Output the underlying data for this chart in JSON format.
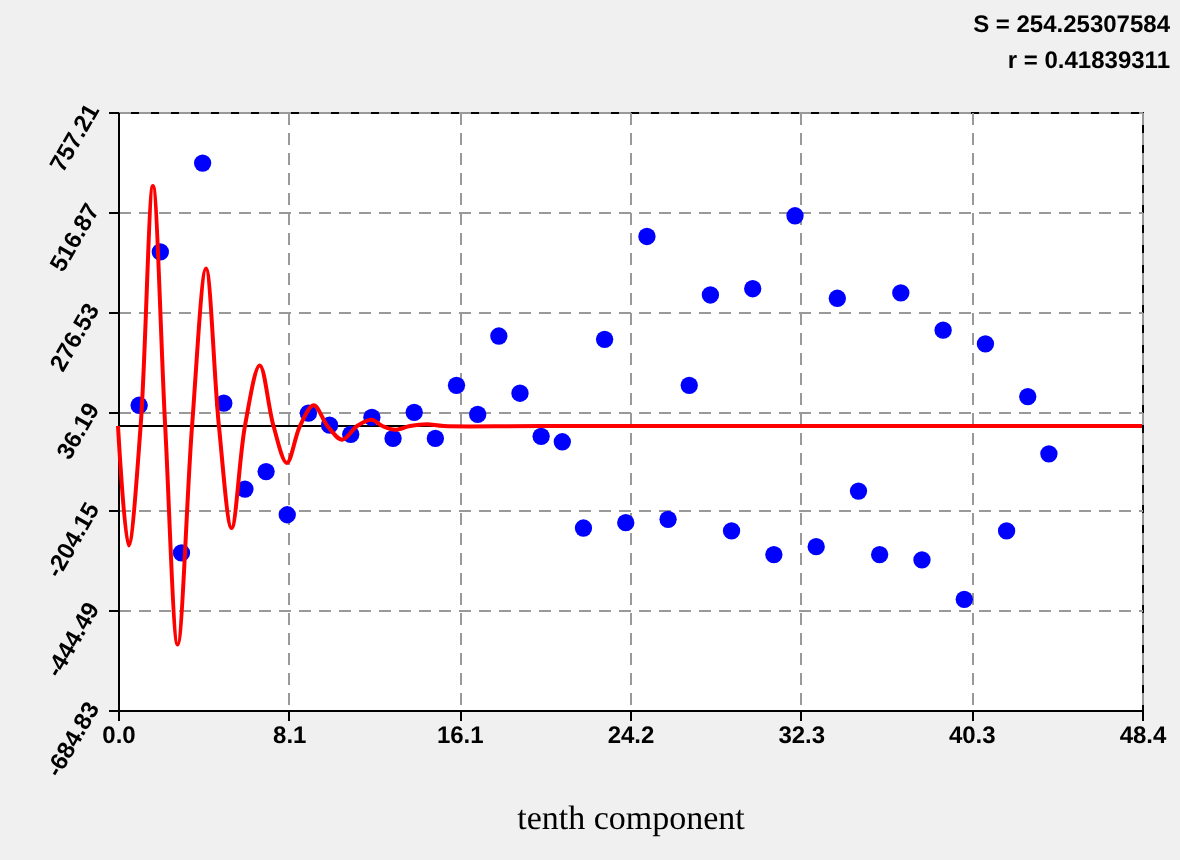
{
  "chart_data": {
    "type": "scatter",
    "xlabel": "tenth component",
    "annotations": [
      "S = 254.25307584",
      "r = 0.41839311"
    ],
    "xlim": [
      0,
      48.4
    ],
    "ylim": [
      -684.83,
      757.21
    ],
    "xticks": [
      {
        "value": 0,
        "label": "0.0"
      },
      {
        "value": 8.07,
        "label": "8.1"
      },
      {
        "value": 16.13,
        "label": "16.1"
      },
      {
        "value": 24.2,
        "label": "24.2"
      },
      {
        "value": 32.27,
        "label": "32.3"
      },
      {
        "value": 40.33,
        "label": "40.3"
      },
      48.4
    ],
    "yticks": [
      -684.83,
      -444.49,
      -204.15,
      36.19,
      276.53,
      516.87,
      757.21
    ],
    "grid": true,
    "legend": false,
    "marker": "circle",
    "ref_lines": [
      {
        "axis": "y",
        "value": 0,
        "color": "#000000"
      }
    ],
    "series": [
      {
        "color": "#0000ff",
        "x": [
          1,
          2,
          3,
          4,
          5,
          6,
          7,
          8,
          9,
          10,
          11,
          12,
          13,
          14,
          15,
          16,
          17,
          18,
          19,
          20,
          21,
          22,
          23,
          24,
          25,
          26,
          27,
          28,
          29,
          30,
          31,
          32,
          33,
          34,
          35,
          36,
          37,
          38,
          39,
          40,
          41,
          42,
          43,
          44
        ],
        "values": [
          50,
          420,
          -306,
          634,
          55,
          -152,
          -110,
          -214,
          31,
          2,
          -20,
          21,
          -30,
          33,
          -30,
          98,
          28,
          217,
          79,
          -25,
          -38,
          -246,
          209,
          -233,
          457,
          -225,
          98,
          316,
          -253,
          331,
          -310,
          507,
          -291,
          308,
          -157,
          -310,
          321,
          -323,
          231,
          -418,
          198,
          -253,
          71,
          -67
        ]
      },
      {
        "type": "line",
        "color": "#ff0000",
        "line_style": "solid",
        "marker": "none",
        "x": [
          0,
          0.5,
          1.07,
          1.65,
          2.23,
          2.82,
          3.5,
          4.16,
          4.77,
          5.37,
          6.0,
          6.7,
          7.35,
          7.98,
          8.6,
          9.25,
          9.9,
          10.6,
          11.3,
          11.98,
          12.5,
          13.1,
          13.8,
          14.6,
          15.4,
          20,
          48.4
        ],
        "values": [
          0,
          -288,
          0,
          579,
          0,
          -527,
          0,
          380,
          0,
          -246,
          0,
          146,
          0,
          -89,
          0,
          50,
          0,
          -33,
          0,
          15,
          0,
          -9,
          0,
          4,
          0,
          0,
          0
        ]
      }
    ]
  }
}
